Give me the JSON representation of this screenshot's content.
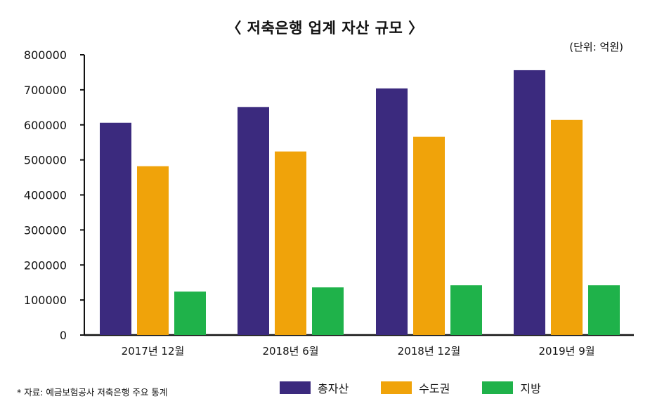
{
  "chart_data": {
    "type": "bar",
    "title": "〈 저축은행 업계 자산 규모 〉",
    "unit_note": "(단위: 억원)",
    "source_note": "* 자료: 예금보험공사 저축은행 주요 통계",
    "categories": [
      "2017년 12월",
      "2018년 6월",
      "2018년 12월",
      "2019년 9월"
    ],
    "series": [
      {
        "name": "총자산",
        "color": "#3b2a7e",
        "values": [
          606000,
          651000,
          704000,
          756000
        ]
      },
      {
        "name": "수도권",
        "color": "#f0a30a",
        "values": [
          482000,
          524000,
          566000,
          614000
        ]
      },
      {
        "name": "지방",
        "color": "#1fb24a",
        "values": [
          124000,
          136000,
          142000,
          142000
        ]
      }
    ],
    "ylim": [
      0,
      800000
    ],
    "yticks": [
      "800000",
      "700000",
      "600000",
      "500000",
      "400000",
      "300000",
      "200000",
      "100000",
      "0"
    ],
    "legend_position": "bottom",
    "grid": false
  }
}
